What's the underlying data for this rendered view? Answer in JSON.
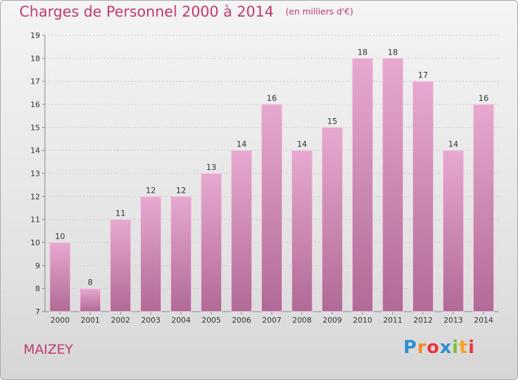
{
  "chart_data": {
    "type": "bar",
    "title": "Charges de Personnel 2000 à 2014",
    "subtitle": "(en milliers d'€)",
    "categories": [
      "2000",
      "2001",
      "2002",
      "2003",
      "2004",
      "2005",
      "2006",
      "2007",
      "2008",
      "2009",
      "2010",
      "2011",
      "2012",
      "2013",
      "2014"
    ],
    "values": [
      10,
      8,
      11,
      12,
      12,
      13,
      14,
      16,
      14,
      15,
      18,
      18,
      17,
      14,
      16
    ],
    "ylim": [
      7,
      19
    ],
    "yticks": [
      7,
      8,
      9,
      10,
      11,
      12,
      13,
      14,
      15,
      16,
      17,
      18,
      19
    ],
    "grid": true,
    "bar_color_top": "#e7a9cf",
    "bar_color_bottom": "#b06a95"
  },
  "commune": "MAIZEY",
  "brand": {
    "letters": [
      "P",
      "r",
      "o",
      "x",
      "i",
      "t",
      "i"
    ],
    "colors": [
      "#2e8fd0",
      "#f28a1e",
      "#e8383d",
      "#2e8fd0",
      "#7cbf3a",
      "#f5a623",
      "#e8383d"
    ]
  }
}
